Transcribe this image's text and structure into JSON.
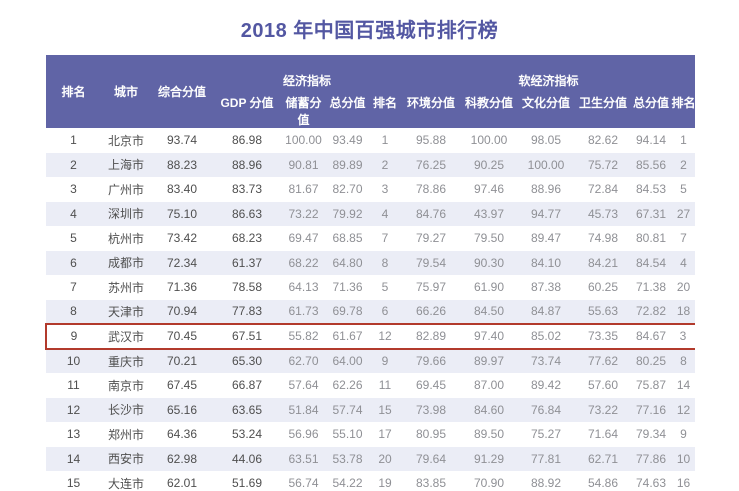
{
  "title": "2018 年中国百强城市排行榜",
  "colors": {
    "header_bg": "#6064a6",
    "stripe": "#ebedf6",
    "title": "#5357a2",
    "highlight_border": "#b23a2c"
  },
  "table": {
    "columns_left": [
      "排名",
      "城市",
      "综合分值"
    ],
    "groups": [
      {
        "label": "经济指标",
        "sub": [
          "GDP 分值",
          "储蓄分值",
          "总分值",
          "排名"
        ]
      },
      {
        "label": "软经济指标",
        "sub": [
          "环境分值",
          "科教分值",
          "文化分值",
          "卫生分值",
          "总分值",
          "排名"
        ]
      }
    ],
    "rows": [
      {
        "rank": "1",
        "city": "北京市",
        "overall": "93.74",
        "gdp": "86.98",
        "savings": "100.00",
        "econ_total": "93.49",
        "econ_rank": "1",
        "env": "95.88",
        "sci_edu": "100.00",
        "culture": "98.05",
        "health": "82.62",
        "soft_total": "94.14",
        "soft_rank": "1",
        "highlight": false
      },
      {
        "rank": "2",
        "city": "上海市",
        "overall": "88.23",
        "gdp": "88.96",
        "savings": "90.81",
        "econ_total": "89.89",
        "econ_rank": "2",
        "env": "76.25",
        "sci_edu": "90.25",
        "culture": "100.00",
        "health": "75.72",
        "soft_total": "85.56",
        "soft_rank": "2",
        "highlight": false
      },
      {
        "rank": "3",
        "city": "广州市",
        "overall": "83.40",
        "gdp": "83.73",
        "savings": "81.67",
        "econ_total": "82.70",
        "econ_rank": "3",
        "env": "78.86",
        "sci_edu": "97.46",
        "culture": "88.96",
        "health": "72.84",
        "soft_total": "84.53",
        "soft_rank": "5",
        "highlight": false
      },
      {
        "rank": "4",
        "city": "深圳市",
        "overall": "75.10",
        "gdp": "86.63",
        "savings": "73.22",
        "econ_total": "79.92",
        "econ_rank": "4",
        "env": "84.76",
        "sci_edu": "43.97",
        "culture": "94.77",
        "health": "45.73",
        "soft_total": "67.31",
        "soft_rank": "27",
        "highlight": false
      },
      {
        "rank": "5",
        "city": "杭州市",
        "overall": "73.42",
        "gdp": "68.23",
        "savings": "69.47",
        "econ_total": "68.85",
        "econ_rank": "7",
        "env": "79.27",
        "sci_edu": "79.50",
        "culture": "89.47",
        "health": "74.98",
        "soft_total": "80.81",
        "soft_rank": "7",
        "highlight": false
      },
      {
        "rank": "6",
        "city": "成都市",
        "overall": "72.34",
        "gdp": "61.37",
        "savings": "68.22",
        "econ_total": "64.80",
        "econ_rank": "8",
        "env": "79.54",
        "sci_edu": "90.30",
        "culture": "84.10",
        "health": "84.21",
        "soft_total": "84.54",
        "soft_rank": "4",
        "highlight": false
      },
      {
        "rank": "7",
        "city": "苏州市",
        "overall": "71.36",
        "gdp": "78.58",
        "savings": "64.13",
        "econ_total": "71.36",
        "econ_rank": "5",
        "env": "75.97",
        "sci_edu": "61.90",
        "culture": "87.38",
        "health": "60.25",
        "soft_total": "71.38",
        "soft_rank": "20",
        "highlight": false
      },
      {
        "rank": "8",
        "city": "天津市",
        "overall": "70.94",
        "gdp": "77.83",
        "savings": "61.73",
        "econ_total": "69.78",
        "econ_rank": "6",
        "env": "66.26",
        "sci_edu": "84.50",
        "culture": "84.87",
        "health": "55.63",
        "soft_total": "72.82",
        "soft_rank": "18",
        "highlight": false
      },
      {
        "rank": "9",
        "city": "武汉市",
        "overall": "70.45",
        "gdp": "67.51",
        "savings": "55.82",
        "econ_total": "61.67",
        "econ_rank": "12",
        "env": "82.89",
        "sci_edu": "97.40",
        "culture": "85.02",
        "health": "73.35",
        "soft_total": "84.67",
        "soft_rank": "3",
        "highlight": true
      },
      {
        "rank": "10",
        "city": "重庆市",
        "overall": "70.21",
        "gdp": "65.30",
        "savings": "62.70",
        "econ_total": "64.00",
        "econ_rank": "9",
        "env": "79.66",
        "sci_edu": "89.97",
        "culture": "73.74",
        "health": "77.62",
        "soft_total": "80.25",
        "soft_rank": "8",
        "highlight": false
      },
      {
        "rank": "11",
        "city": "南京市",
        "overall": "67.45",
        "gdp": "66.87",
        "savings": "57.64",
        "econ_total": "62.26",
        "econ_rank": "11",
        "env": "69.45",
        "sci_edu": "87.00",
        "culture": "89.42",
        "health": "57.60",
        "soft_total": "75.87",
        "soft_rank": "14",
        "highlight": false
      },
      {
        "rank": "12",
        "city": "长沙市",
        "overall": "65.16",
        "gdp": "63.65",
        "savings": "51.84",
        "econ_total": "57.74",
        "econ_rank": "15",
        "env": "73.98",
        "sci_edu": "84.60",
        "culture": "76.84",
        "health": "73.22",
        "soft_total": "77.16",
        "soft_rank": "12",
        "highlight": false
      },
      {
        "rank": "13",
        "city": "郑州市",
        "overall": "64.36",
        "gdp": "53.24",
        "savings": "56.96",
        "econ_total": "55.10",
        "econ_rank": "17",
        "env": "80.95",
        "sci_edu": "89.50",
        "culture": "75.27",
        "health": "71.64",
        "soft_total": "79.34",
        "soft_rank": "9",
        "highlight": false
      },
      {
        "rank": "14",
        "city": "西安市",
        "overall": "62.98",
        "gdp": "44.06",
        "savings": "63.51",
        "econ_total": "53.78",
        "econ_rank": "20",
        "env": "79.64",
        "sci_edu": "91.29",
        "culture": "77.81",
        "health": "62.71",
        "soft_total": "77.86",
        "soft_rank": "10",
        "highlight": false
      },
      {
        "rank": "15",
        "city": "大连市",
        "overall": "62.01",
        "gdp": "51.69",
        "savings": "56.74",
        "econ_total": "54.22",
        "econ_rank": "19",
        "env": "83.85",
        "sci_edu": "70.90",
        "culture": "88.92",
        "health": "54.86",
        "soft_total": "74.63",
        "soft_rank": "16",
        "highlight": false
      }
    ]
  }
}
